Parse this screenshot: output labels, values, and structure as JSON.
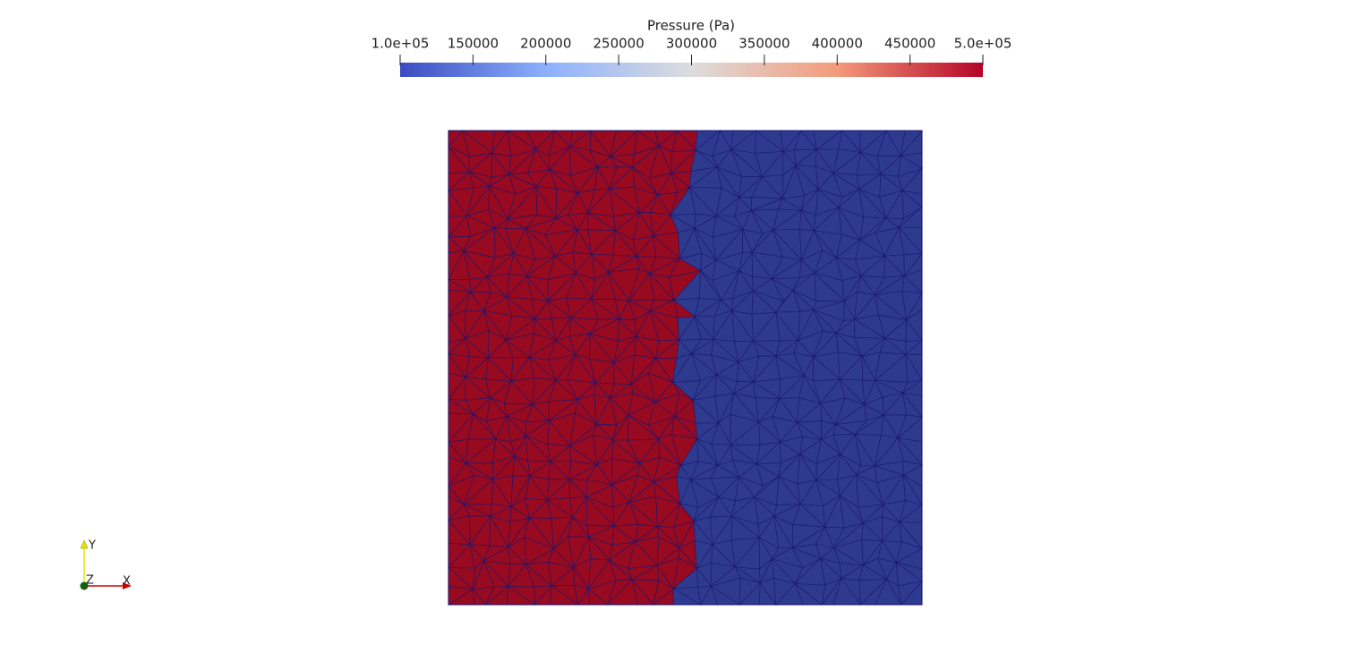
{
  "colorbar": {
    "title": "Pressure (Pa)",
    "range": [
      100000,
      500000
    ],
    "ticks": [
      {
        "value": 100000,
        "label": "1.0e+05"
      },
      150000,
      200000,
      250000,
      300000,
      350000,
      400000,
      450000,
      {
        "value": 500000,
        "label": "5.0e+05"
      }
    ],
    "colors": [
      "#3b4cc0",
      "#8db0fe",
      "#dddddd",
      "#f49a7b",
      "#b40426"
    ]
  },
  "axes_triad": {
    "y": "Y",
    "z": "Z",
    "x": "X"
  }
}
